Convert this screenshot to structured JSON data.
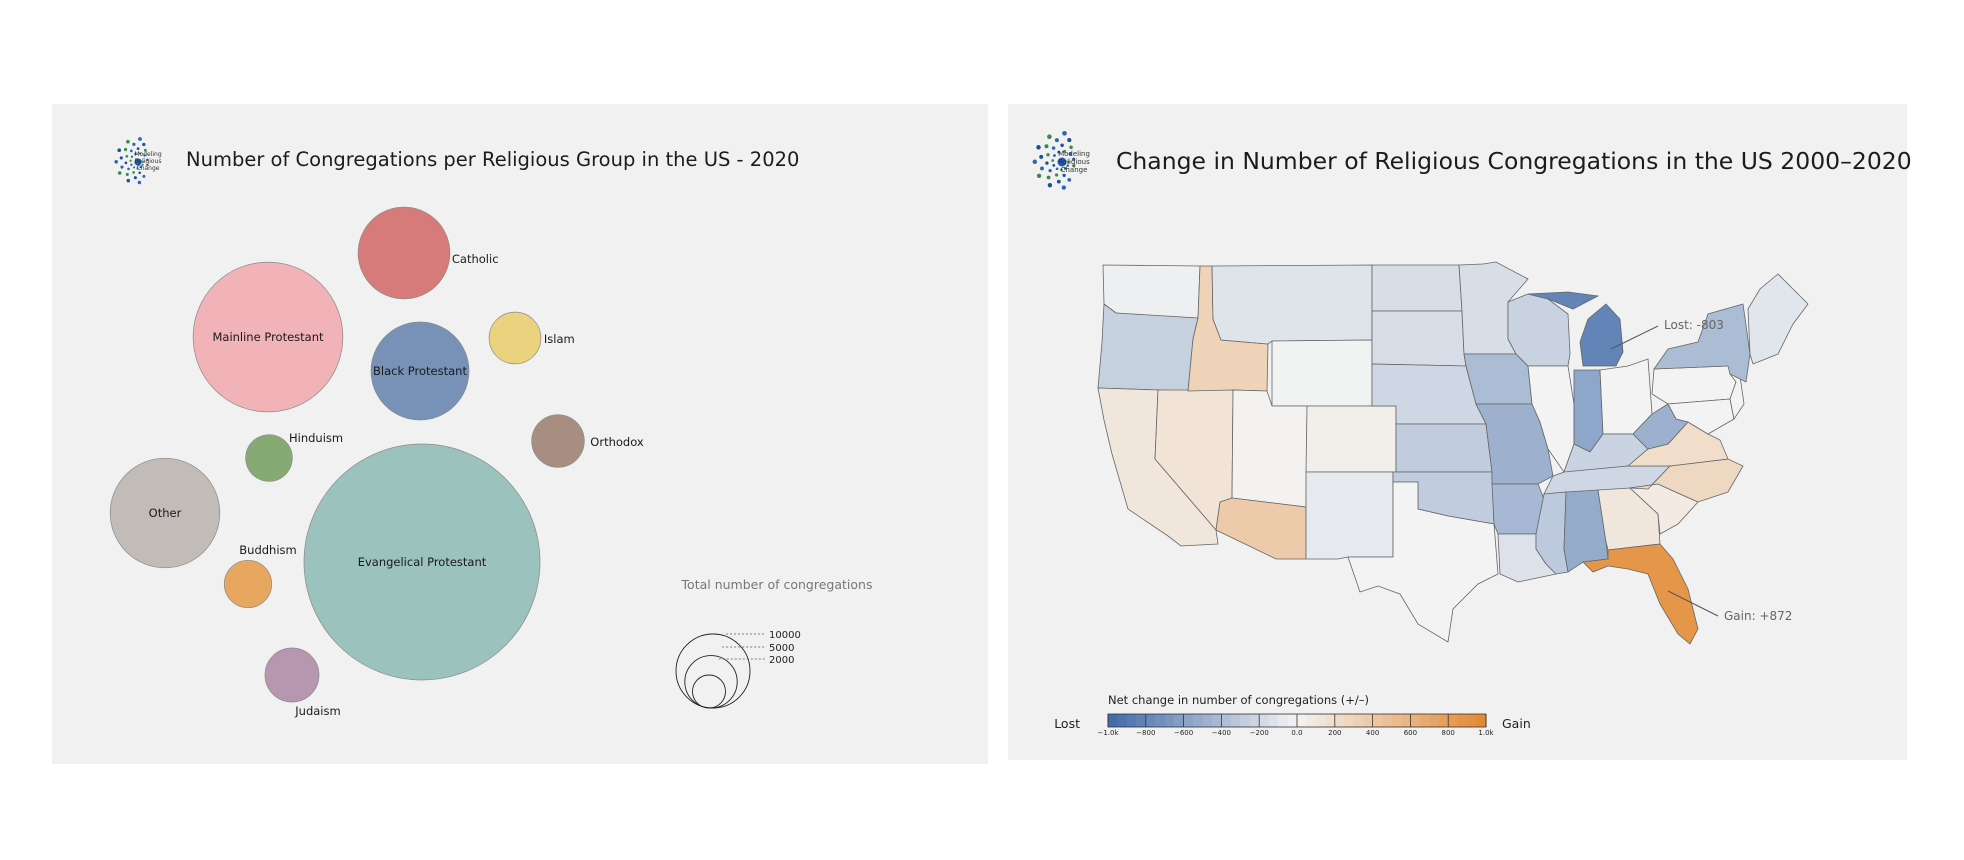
{
  "left_panel": {
    "title": "Number of Congregations per Religious Group in the US - 2020",
    "logo_text": [
      "Modeling",
      "Religious",
      "Change"
    ]
  },
  "right_panel": {
    "title": "Change in Number of Religious Congregations in the US 2000–2020",
    "logo_text": [
      "Modeling",
      "Religious",
      "Change"
    ]
  },
  "chart_data": [
    {
      "type": "bubble",
      "title": "Number of Congregations per Religious Group in the US - 2020",
      "size_legend": {
        "title": "Total number of congregations",
        "values": [
          10000,
          5000,
          2000
        ],
        "labels": [
          "10000",
          "5000",
          "2000"
        ]
      },
      "series": [
        {
          "name": "Evangelical Protestant",
          "value": 139000,
          "color": "#9bc2bd"
        },
        {
          "name": "Mainline Protestant",
          "value": 56000,
          "color": "#f1b2b8"
        },
        {
          "name": "Catholic",
          "value": 21000,
          "color": "#d77b7a"
        },
        {
          "name": "Black Protestant",
          "value": 24000,
          "color": "#7891b7"
        },
        {
          "name": "Other",
          "value": 30000,
          "color": "#c1bcb8"
        },
        {
          "name": "Orthodox",
          "value": 6900,
          "color": "#a88e80"
        },
        {
          "name": "Islam",
          "value": 6700,
          "color": "#ead27e"
        },
        {
          "name": "Hinduism",
          "value": 5400,
          "color": "#86aa74"
        },
        {
          "name": "Buddhism",
          "value": 5600,
          "color": "#e7a75f"
        },
        {
          "name": "Judaism",
          "value": 7300,
          "color": "#b796b0"
        }
      ]
    },
    {
      "type": "choropleth",
      "title": "Change in Number of Religious Congregations in the US 2000–2020",
      "colorbar": {
        "title": "Net change in number of congregations (+/–)",
        "min": -1000,
        "max": 1000,
        "tick_values": [
          -1000,
          -800,
          -600,
          -400,
          -200,
          0,
          200,
          400,
          600,
          800,
          1000
        ],
        "tick_labels": [
          "−1.0k",
          "−800",
          "−600",
          "−400",
          "−200",
          "0.0",
          "200",
          "400",
          "600",
          "800",
          "1.0k"
        ],
        "low_label": "Lost",
        "high_label": "Gain"
      },
      "annotations": [
        {
          "text": "Lost: -803",
          "state": "Michigan"
        },
        {
          "text": "Gain: +872",
          "state": "Florida"
        }
      ],
      "values": {
        "Washington": -30,
        "Oregon": -250,
        "California": 120,
        "Nevada": 150,
        "Idaho": 300,
        "Montana": -110,
        "Wyoming": -10,
        "Utah": 10,
        "Arizona": 380,
        "New Mexico": -70,
        "Colorado": 50,
        "North Dakota": -150,
        "South Dakota": -160,
        "Nebraska": -200,
        "Kansas": -280,
        "Oklahoma": -280,
        "Texas": 0,
        "Minnesota": -150,
        "Iowa": -400,
        "Missouri": -480,
        "Arkansas": -430,
        "Louisiana": -120,
        "Wisconsin": -240,
        "Illinois": 0,
        "Michigan": -803,
        "Indiana": -560,
        "Ohio": 0,
        "Kentucky": -230,
        "Tennessee": -200,
        "Mississippi": -300,
        "Alabama": -520,
        "Georgia": 120,
        "Florida": 872,
        "South Carolina": 80,
        "North Carolina": 250,
        "Virginia": 210,
        "West Virginia": -480,
        "Pennsylvania": 0,
        "New York": -400,
        "Maryland": 0,
        "New Jersey": 0,
        "New England": -100
      }
    }
  ]
}
